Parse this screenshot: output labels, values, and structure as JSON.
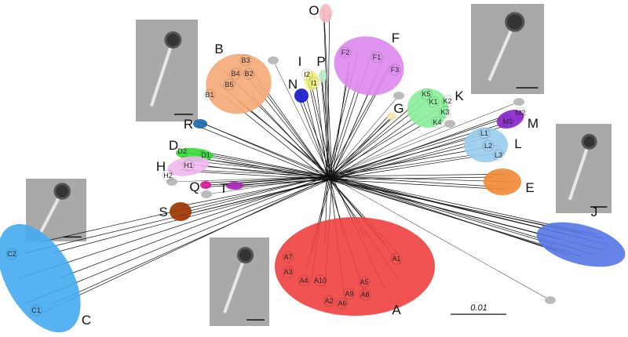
{
  "clusters": [
    {
      "id": "O",
      "color": "#f4b8bd",
      "subgroups": []
    },
    {
      "id": "F",
      "color": "#dd88ee",
      "subgroups": [
        "F2",
        "F1",
        "F3"
      ]
    },
    {
      "id": "B",
      "color": "#f5a878",
      "subgroups": [
        "B3",
        "B4",
        "B2",
        "B5",
        "B1"
      ]
    },
    {
      "id": "I",
      "color": "#eef07a",
      "subgroups": [
        "I2",
        "I1"
      ]
    },
    {
      "id": "P",
      "color": "#b8ecc8",
      "subgroups": []
    },
    {
      "id": "N",
      "color": "#1515cc",
      "subgroups": []
    },
    {
      "id": "G",
      "color": "#f3e8b0",
      "subgroups": []
    },
    {
      "id": "K",
      "color": "#88ee99",
      "subgroups": [
        "K5",
        "K1",
        "K2",
        "K3",
        "K4"
      ]
    },
    {
      "id": "M",
      "color": "#8822cc",
      "subgroups": [
        "M2",
        "M1"
      ]
    },
    {
      "id": "L",
      "color": "#99ccee",
      "subgroups": [
        "L1",
        "L2",
        "L3"
      ]
    },
    {
      "id": "E",
      "color": "#f08833",
      "subgroups": []
    },
    {
      "id": "J",
      "color": "#5577e6",
      "subgroups": []
    },
    {
      "id": "R",
      "color": "#1a66aa",
      "subgroups": []
    },
    {
      "id": "D",
      "color": "#33dd33",
      "subgroups": [
        "D2",
        "D1"
      ]
    },
    {
      "id": "H",
      "color": "#f0b8ee",
      "subgroups": [
        "H1",
        "H2"
      ]
    },
    {
      "id": "Q",
      "color": "#dd1199",
      "subgroups": []
    },
    {
      "id": "T",
      "color": "#aa22bb",
      "subgroups": []
    },
    {
      "id": "S",
      "color": "#993300",
      "subgroups": []
    },
    {
      "id": "C",
      "color": "#44aaee",
      "subgroups": [
        "C2",
        "C1"
      ]
    },
    {
      "id": "A",
      "color": "#f04040",
      "subgroups": [
        "A7",
        "A3",
        "A4",
        "A10",
        "A2",
        "A6",
        "A9",
        "A5",
        "A8",
        "A1"
      ]
    }
  ],
  "unassigned_color": "#bbbbbb",
  "scale_bar": {
    "label": "0.01"
  }
}
